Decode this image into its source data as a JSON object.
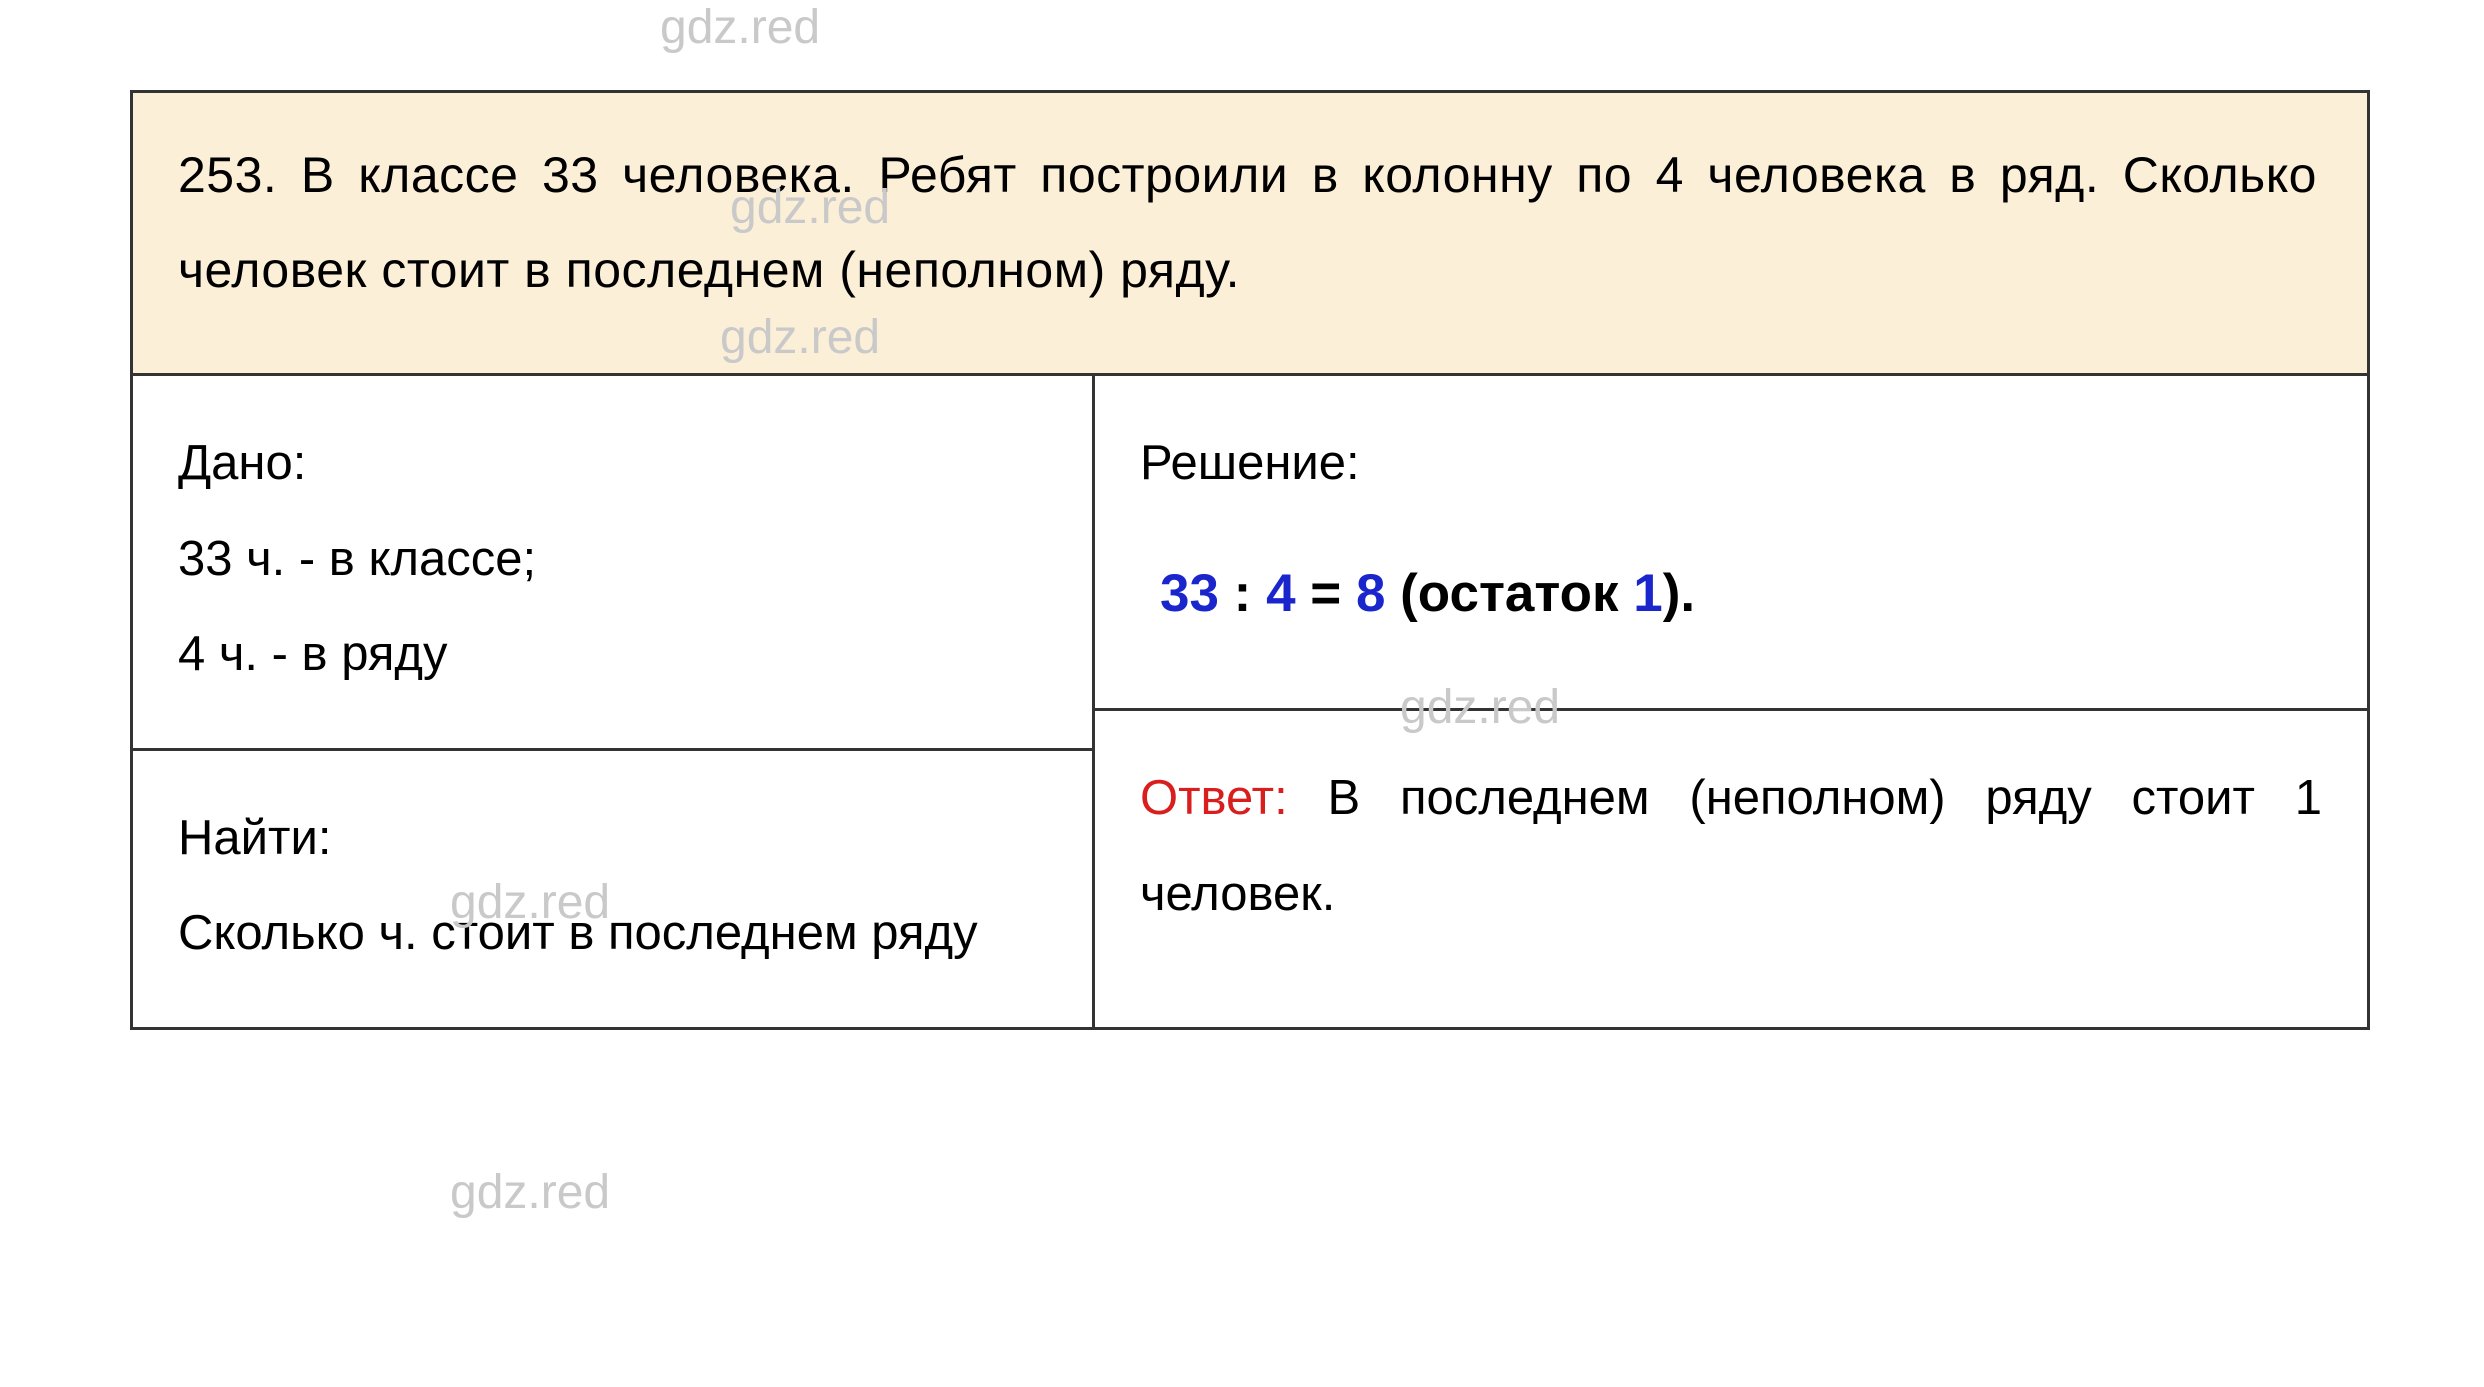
{
  "watermarks": {
    "text": "gdz.red"
  },
  "problem": {
    "number": "253.",
    "text": "В классе 33 человека. Ребят построили в колонну по 4 человека в ряд. Сколько человек стоит в последнем (неполном) ряду."
  },
  "given": {
    "heading": "Дано:",
    "line1": "33 ч. - в классе;",
    "line2": "4 ч. - в ряду"
  },
  "solution": {
    "heading": "Решение:",
    "equation": {
      "n1": "33",
      "op1": " : ",
      "n2": "4",
      "eq": " = ",
      "n3": "8",
      "open": " (остаток ",
      "n4": "1",
      "close": ")."
    }
  },
  "find": {
    "heading": "Найти:",
    "text": "Сколько ч. стоит в последнем ряду"
  },
  "answer": {
    "label": "Ответ:",
    "text": " В последнем (неполном) ряду стоит 1 человек."
  },
  "colors": {
    "problem_bg": "#fcefd7",
    "border": "#333333",
    "text": "#000000",
    "watermark": "#c9c9c9",
    "blue": "#1a26cc",
    "red": "#d91e1e",
    "page_bg": "#ffffff"
  },
  "typography": {
    "body_fontsize": 50,
    "equation_fontsize": 53,
    "watermark_fontsize": 48,
    "line_height": 1.9
  }
}
